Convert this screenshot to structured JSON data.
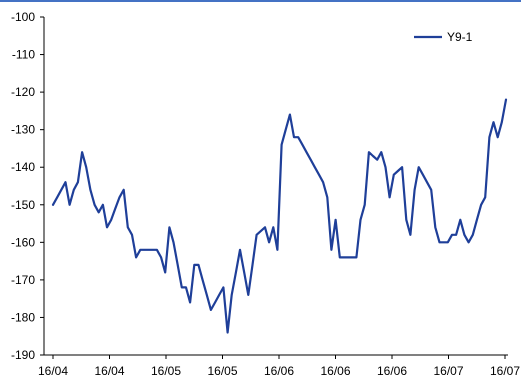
{
  "chart_data": {
    "type": "line",
    "title": "",
    "xlabel": "",
    "ylabel": "",
    "ylim": [
      -190,
      -100
    ],
    "yticks": [
      -100,
      -110,
      -120,
      -130,
      -140,
      -150,
      -160,
      -170,
      -180,
      -190
    ],
    "xtick_labels": [
      "16/04",
      "16/04",
      "16/05",
      "16/05",
      "16/06",
      "16/06",
      "16/06",
      "16/07",
      "16/07"
    ],
    "grid": false,
    "legend_position": "top-right",
    "series": [
      {
        "name": "Y9-1",
        "color": "#1f3f99",
        "values": [
          -150,
          -148,
          -146,
          -144,
          -150,
          -146,
          -144,
          -136,
          -140,
          -146,
          -150,
          -152,
          -150,
          -156,
          -154,
          -151,
          -148,
          -146,
          -156,
          -158,
          -164,
          -162,
          -162,
          -162,
          -162,
          -162,
          -164,
          -168,
          -156,
          -160,
          -166,
          -172,
          -172,
          -176,
          -166,
          -166,
          -170,
          -174,
          -178,
          -176,
          -174,
          -172,
          -184,
          -174,
          -168,
          -162,
          -168,
          -174,
          -166,
          -158,
          -157,
          -156,
          -160,
          -156,
          -162,
          -134,
          -130,
          -126,
          -132,
          -132,
          -134,
          -136,
          -138,
          -140,
          -142,
          -144,
          -148,
          -162,
          -154,
          -164,
          -164,
          -164,
          -164,
          -164,
          -154,
          -150,
          -136,
          -137,
          -138,
          -136,
          -140,
          -148,
          -142,
          -141,
          -140,
          -154,
          -158,
          -146,
          -140,
          -142,
          -144,
          -146,
          -156,
          -160,
          -160,
          -160,
          -158,
          -158,
          -154,
          -158,
          -160,
          -158,
          -154,
          -150,
          -148,
          -132,
          -128,
          -132,
          -128,
          -122
        ]
      }
    ]
  }
}
